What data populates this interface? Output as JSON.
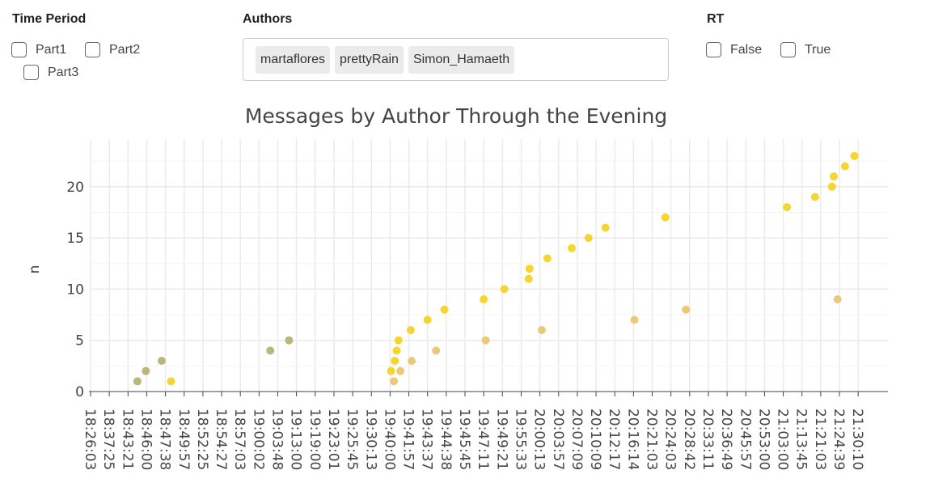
{
  "filters": {
    "time_period": {
      "title": "Time Period",
      "options": [
        "Part1",
        "Part2",
        "Part3"
      ]
    },
    "authors": {
      "title": "Authors",
      "selected": [
        "martaflores",
        "prettyRain",
        "Simon_Hamaeth"
      ]
    },
    "rt": {
      "title": "RT",
      "options": [
        "False",
        "True"
      ]
    }
  },
  "colors": {
    "series_bright": "#f5d530",
    "series_light": "#ecc97a",
    "series_olive": "#b9b77a",
    "grid": "#ebebeb",
    "axis": "#444444"
  },
  "chart_data": {
    "type": "scatter",
    "title": "Messages by Author Through the Evening",
    "ylabel": "n",
    "xlabel": "",
    "ylim": [
      0,
      23
    ],
    "y_ticks": [
      0,
      5,
      10,
      15,
      20
    ],
    "x_categories": [
      "18:26:03",
      "18:37:25",
      "18:43:21",
      "18:46:00",
      "18:47:38",
      "18:49:57",
      "18:52:25",
      "18:54:27",
      "18:57:03",
      "19:00:02",
      "19:03:48",
      "19:13:00",
      "19:19:00",
      "19:23:01",
      "19:25:45",
      "19:30:13",
      "19:40:00",
      "19:41:57",
      "19:43:37",
      "19:44:38",
      "19:45:45",
      "19:47:11",
      "19:49:21",
      "19:55:33",
      "20:00:13",
      "20:03:57",
      "20:07:09",
      "20:10:09",
      "20:12:17",
      "20:16:14",
      "20:21:03",
      "20:24:03",
      "20:28:42",
      "20:33:11",
      "20:36:49",
      "20:45:57",
      "20:53:00",
      "21:03:00",
      "21:13:45",
      "21:21:03",
      "21:24:39",
      "21:30:10"
    ],
    "series": [
      {
        "color_key": "series_olive",
        "points": [
          {
            "x": 2.5,
            "y": 1
          },
          {
            "x": 2.95,
            "y": 2
          },
          {
            "x": 3.8,
            "y": 3
          },
          {
            "x": 9.6,
            "y": 4
          },
          {
            "x": 10.6,
            "y": 5
          }
        ]
      },
      {
        "color_key": "series_bright",
        "points": [
          {
            "x": 4.3,
            "y": 1
          },
          {
            "x": 16.05,
            "y": 2
          },
          {
            "x": 16.25,
            "y": 3
          },
          {
            "x": 16.35,
            "y": 4
          },
          {
            "x": 16.45,
            "y": 5
          },
          {
            "x": 17.1,
            "y": 6
          },
          {
            "x": 18.0,
            "y": 7
          },
          {
            "x": 18.9,
            "y": 8
          },
          {
            "x": 21.0,
            "y": 9
          },
          {
            "x": 22.1,
            "y": 10
          },
          {
            "x": 23.4,
            "y": 11
          },
          {
            "x": 23.45,
            "y": 12
          },
          {
            "x": 24.4,
            "y": 13
          },
          {
            "x": 25.7,
            "y": 14
          },
          {
            "x": 26.6,
            "y": 15
          },
          {
            "x": 27.5,
            "y": 16
          },
          {
            "x": 30.7,
            "y": 17
          },
          {
            "x": 37.2,
            "y": 18
          },
          {
            "x": 38.7,
            "y": 19
          },
          {
            "x": 39.6,
            "y": 20
          },
          {
            "x": 39.7,
            "y": 21
          },
          {
            "x": 40.3,
            "y": 22
          },
          {
            "x": 40.8,
            "y": 23
          }
        ]
      },
      {
        "color_key": "series_light",
        "points": [
          {
            "x": 16.2,
            "y": 1
          },
          {
            "x": 16.55,
            "y": 2
          },
          {
            "x": 17.15,
            "y": 3
          },
          {
            "x": 18.45,
            "y": 4
          },
          {
            "x": 21.1,
            "y": 5
          },
          {
            "x": 24.1,
            "y": 6
          },
          {
            "x": 29.05,
            "y": 7
          },
          {
            "x": 31.8,
            "y": 8
          },
          {
            "x": 39.9,
            "y": 9
          }
        ]
      }
    ],
    "grid": true,
    "legend": "none"
  }
}
